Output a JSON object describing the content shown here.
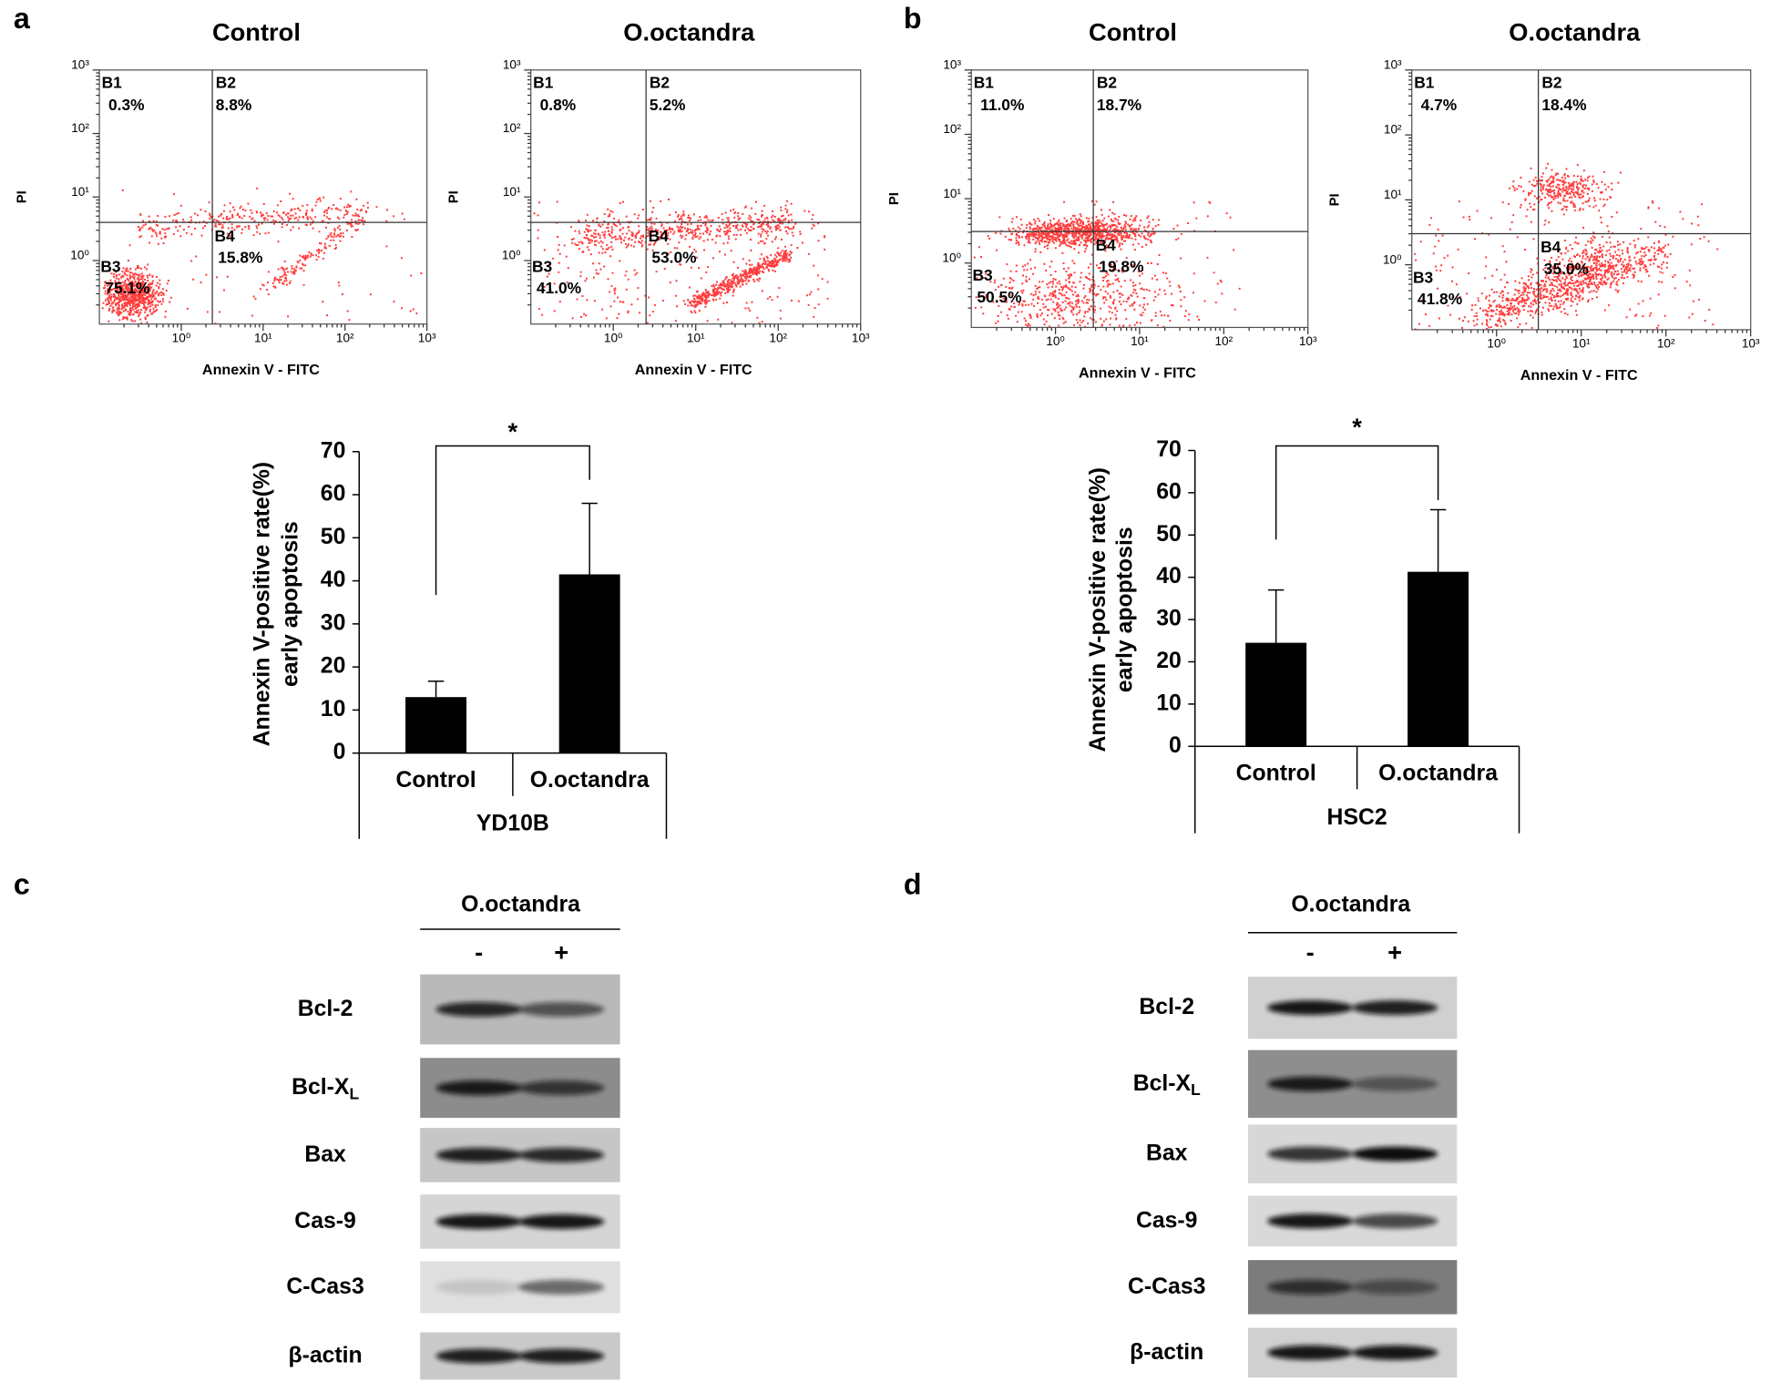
{
  "flow_plots": [
    {
      "panel": "a",
      "title": "Control",
      "x_label": "Annexin V - FITC",
      "y_label": "PI",
      "log": true,
      "xlim": [
        0.1,
        1000
      ],
      "ylim": [
        0.1,
        1000
      ],
      "xticks": [
        {
          "value": 1,
          "label": "10⁰"
        },
        {
          "value": 10,
          "label": "10¹"
        },
        {
          "value": 100,
          "label": "10²"
        },
        {
          "value": 1000,
          "label": "10³"
        }
      ],
      "yticks": [
        {
          "value": 1,
          "label": "10⁰"
        },
        {
          "value": 10,
          "label": "10¹"
        },
        {
          "value": 100,
          "label": "10²"
        },
        {
          "value": 1000,
          "label": "10³"
        }
      ],
      "quadrants": [
        {
          "name": "B1",
          "percent": "0.3%"
        },
        {
          "name": "B2",
          "percent": "8.8%"
        },
        {
          "name": "B3",
          "percent": "75.1%"
        },
        {
          "name": "B4",
          "percent": "15.8%"
        }
      ]
    },
    {
      "title": "O.octandra",
      "x_label": "Annexin V - FITC",
      "y_label": "PI",
      "log": true,
      "xlim": [
        0.1,
        1000
      ],
      "ylim": [
        0.1,
        1000
      ],
      "xticks": [
        {
          "value": 1,
          "label": "10⁰"
        },
        {
          "value": 10,
          "label": "10¹"
        },
        {
          "value": 100,
          "label": "10²"
        },
        {
          "value": 1000,
          "label": "10³"
        }
      ],
      "yticks": [
        {
          "value": 1,
          "label": "10⁰"
        },
        {
          "value": 10,
          "label": "10¹"
        },
        {
          "value": 100,
          "label": "10²"
        },
        {
          "value": 1000,
          "label": "10³"
        }
      ],
      "quadrants": [
        {
          "name": "B1",
          "percent": "0.8%"
        },
        {
          "name": "B2",
          "percent": "5.2%"
        },
        {
          "name": "B3",
          "percent": "41.0%"
        },
        {
          "name": "B4",
          "percent": "53.0%"
        }
      ]
    },
    {
      "panel": "b",
      "title": "Control",
      "x_label": "Annexin V - FITC",
      "y_label": "PI",
      "log": true,
      "xlim": [
        0.1,
        1000
      ],
      "ylim": [
        0.1,
        1000
      ],
      "xticks": [
        {
          "value": 1,
          "label": "10⁰"
        },
        {
          "value": 10,
          "label": "10¹"
        },
        {
          "value": 100,
          "label": "10²"
        },
        {
          "value": 1000,
          "label": "10³"
        }
      ],
      "yticks": [
        {
          "value": 1,
          "label": "10⁰"
        },
        {
          "value": 10,
          "label": "10¹"
        },
        {
          "value": 100,
          "label": "10²"
        },
        {
          "value": 1000,
          "label": "10³"
        }
      ],
      "quadrants": [
        {
          "name": "B1",
          "percent": "11.0%"
        },
        {
          "name": "B2",
          "percent": "18.7%"
        },
        {
          "name": "B3",
          "percent": "50.5%"
        },
        {
          "name": "B4",
          "percent": "19.8%"
        }
      ]
    },
    {
      "title": "O.octandra",
      "x_label": "Annexin V - FITC",
      "y_label": "PI",
      "log": true,
      "xlim": [
        0.1,
        1000
      ],
      "ylim": [
        0.1,
        1000
      ],
      "xticks": [
        {
          "value": 1,
          "label": "10⁰"
        },
        {
          "value": 10,
          "label": "10¹"
        },
        {
          "value": 100,
          "label": "10²"
        },
        {
          "value": 1000,
          "label": "10³"
        }
      ],
      "yticks": [
        {
          "value": 1,
          "label": "10⁰"
        },
        {
          "value": 10,
          "label": "10¹"
        },
        {
          "value": 100,
          "label": "10²"
        },
        {
          "value": 1000,
          "label": "10³"
        }
      ],
      "quadrants": [
        {
          "name": "B1",
          "percent": "4.7%"
        },
        {
          "name": "B2",
          "percent": "18.4%"
        },
        {
          "name": "B3",
          "percent": "41.8%"
        },
        {
          "name": "B4",
          "percent": "35.0%"
        }
      ]
    }
  ],
  "chart_data": [
    {
      "type": "bar",
      "categories": [
        "Control",
        "O.octandra"
      ],
      "values": [
        13,
        41.5
      ],
      "errors": [
        3.7,
        16.5
      ],
      "color": "#000000",
      "ylim": [
        0,
        70
      ],
      "yticks": [
        0,
        10,
        20,
        30,
        40,
        50,
        60,
        70
      ],
      "ylabel": [
        "Annexin V-positive rate(%)",
        "early apoptosis"
      ],
      "group": "YD10B",
      "annotation": "*"
    },
    {
      "type": "bar",
      "categories": [
        "Control",
        "O.octandra"
      ],
      "values": [
        24.5,
        41.3
      ],
      "errors": [
        12.5,
        14.7
      ],
      "color": "#000000",
      "ylim": [
        0,
        70
      ],
      "yticks": [
        0,
        10,
        20,
        30,
        40,
        50,
        60,
        70
      ],
      "ylabel": [
        "Annexin V-positive rate(%)",
        "early apoptosis"
      ],
      "group": "HSC2",
      "annotation": "*"
    }
  ],
  "blots": [
    {
      "panel": "c",
      "treatment": "O.octandra",
      "lanes": [
        "-",
        "+"
      ],
      "rows": [
        {
          "label": "Bcl-2"
        },
        {
          "label": "Bcl-X",
          "subscript": "L"
        },
        {
          "label": "Bax"
        },
        {
          "label": "Cas-9"
        },
        {
          "label": "C-Cas3"
        },
        {
          "label": "β-actin"
        }
      ]
    },
    {
      "panel": "d",
      "treatment": "O.octandra",
      "lanes": [
        "-",
        "+"
      ],
      "rows": [
        {
          "label": "Bcl-2"
        },
        {
          "label": "Bcl-X",
          "subscript": "L"
        },
        {
          "label": "Bax"
        },
        {
          "label": "Cas-9"
        },
        {
          "label": "C-Cas3"
        },
        {
          "label": "β-actin"
        }
      ]
    }
  ]
}
